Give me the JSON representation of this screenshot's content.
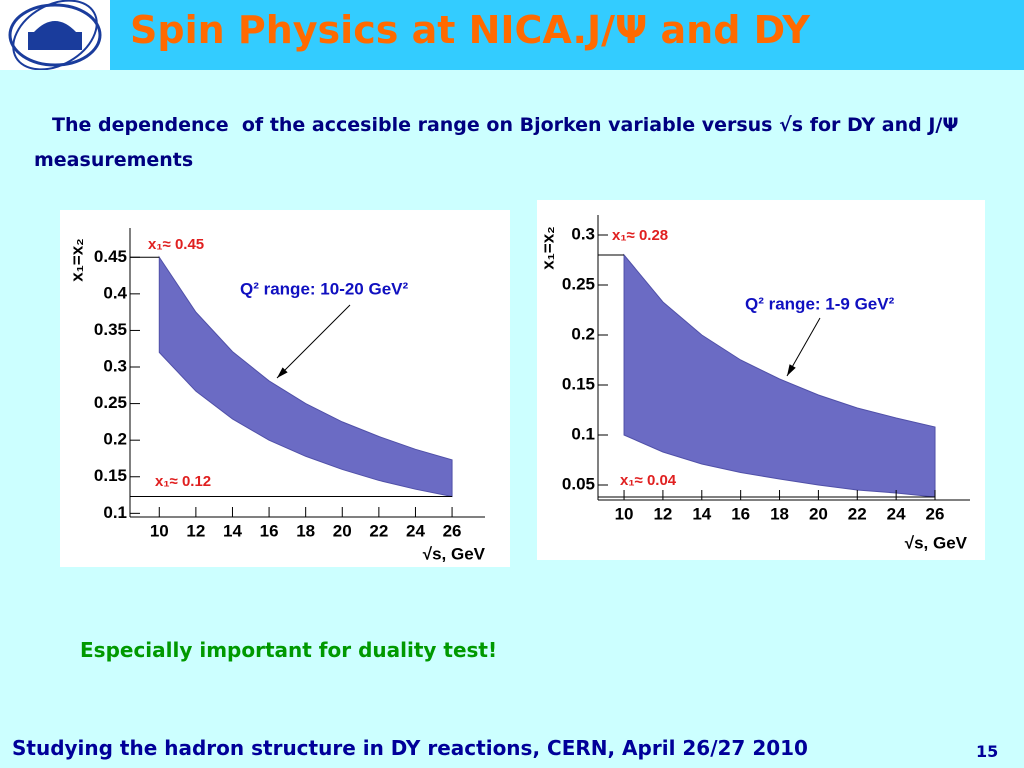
{
  "header": {
    "title": "Spin Physics at NICA.J/Ψ and DY"
  },
  "intro": "The dependence  of the accesible range on Bjorken variable versus √s for DY and J/Ψ  measurements",
  "note": "Especially important for duality test!",
  "footer": {
    "text": "Studying the hadron structure in DY reactions, CERN, April 26/27 2010",
    "page": 15
  },
  "chart_data": [
    {
      "type": "band",
      "x_label": "√s, GeV",
      "y_label": "x₁=x₂",
      "x": [
        10,
        12,
        14,
        16,
        18,
        20,
        22,
        24,
        26
      ],
      "series": [
        {
          "color": "#6b6bc4",
          "values": [
            0.45,
            0.375,
            0.321,
            0.281,
            0.25,
            0.225,
            0.205,
            0.1875,
            0.173
          ]
        },
        {
          "color": "#6b6bc4",
          "values": [
            0.32,
            0.267,
            0.229,
            0.2,
            0.178,
            0.16,
            0.145,
            0.133,
            0.123
          ]
        }
      ],
      "annotations": [
        "x₁≈ 0.45",
        "x₁≈ 0.12",
        "Q² range: 10-20 GeV²"
      ],
      "xlim": [
        8.4,
        27.8
      ],
      "xticks": [
        10,
        12,
        14,
        16,
        18,
        20,
        22,
        24,
        26
      ],
      "ylim": [
        0.095,
        0.49
      ],
      "yticks": [
        0.1,
        0.15,
        0.2,
        0.25,
        0.3,
        0.35,
        0.4,
        0.45
      ]
    },
    {
      "type": "band",
      "x_label": "√s, GeV",
      "y_label": "x₁=x₂",
      "x": [
        10,
        12,
        14,
        16,
        18,
        20,
        22,
        24,
        26
      ],
      "series": [
        {
          "color": "#6b6bc4",
          "values": [
            0.28,
            0.233,
            0.2,
            0.175,
            0.156,
            0.14,
            0.127,
            0.117,
            0.108
          ]
        },
        {
          "color": "#6b6bc4",
          "values": [
            0.1,
            0.083,
            0.071,
            0.0625,
            0.056,
            0.05,
            0.045,
            0.042,
            0.038
          ]
        }
      ],
      "annotations": [
        "x₁≈ 0.28",
        "x₁≈ 0.04",
        "Q² range: 1-9 GeV²"
      ],
      "xlim": [
        8.66,
        27.8
      ],
      "xticks": [
        10,
        12,
        14,
        16,
        18,
        20,
        22,
        24,
        26
      ],
      "ylim": [
        0.035,
        0.32
      ],
      "yticks": [
        0.05,
        0.1,
        0.15,
        0.2,
        0.25,
        0.3
      ]
    }
  ]
}
